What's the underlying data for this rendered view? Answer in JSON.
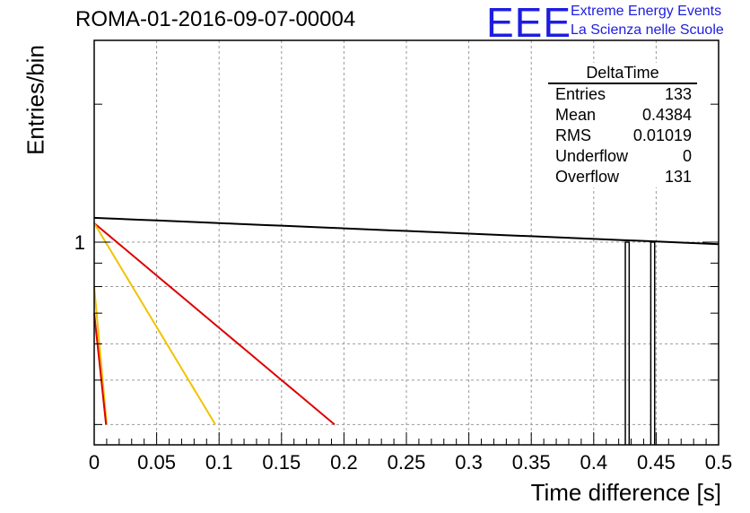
{
  "plot_title": "ROMA-01-2016-09-07-00004",
  "logo": {
    "mark": "EEE",
    "line1": "Extreme Energy Events",
    "line2": "La Scienza nelle Scuole",
    "color": "#1d1de0"
  },
  "stats_box": {
    "title": "DeltaTime",
    "rows": [
      {
        "label": "Entries",
        "value": "133"
      },
      {
        "label": "Mean",
        "value": "0.4384"
      },
      {
        "label": "RMS",
        "value": "0.01019"
      },
      {
        "label": "Underflow",
        "value": "0"
      },
      {
        "label": "Overflow",
        "value": "131"
      }
    ]
  },
  "chart_data": {
    "type": "line",
    "title": "ROMA-01-2016-09-07-00004",
    "xlabel": "Time difference [s]",
    "ylabel": "Entries/bin",
    "xlim": [
      0,
      0.5
    ],
    "ylog": true,
    "grid": true,
    "x_ticks": [
      "0",
      "0.05",
      "0.1",
      "0.15",
      "0.2",
      "0.25",
      "0.3",
      "0.35",
      "0.4",
      "0.45",
      "0.5"
    ],
    "y_ticks": [
      "1"
    ],
    "histogram": {
      "color": "#000000",
      "bins": [
        {
          "x0": 0.4253,
          "x1": 0.4284,
          "count": 1
        },
        {
          "x0": 0.4457,
          "x1": 0.4488,
          "count": 1
        }
      ]
    },
    "fits": [
      {
        "color": "#000000",
        "x": [
          0,
          0.5
        ],
        "y": [
          1.13,
          0.99
        ]
      },
      {
        "color": "#dd0000",
        "x": [
          0,
          0.1925
        ],
        "y": [
          1.1,
          0.4
        ]
      },
      {
        "color": "#f2c200",
        "x": [
          0,
          0.097
        ],
        "y": [
          1.1,
          0.4
        ]
      },
      {
        "color": "#f2c200",
        "x": [
          0,
          0.01
        ],
        "y": [
          0.8,
          0.4
        ]
      },
      {
        "color": "#dd0000",
        "x": [
          0,
          0.0095
        ],
        "y": [
          0.7,
          0.4
        ]
      }
    ],
    "colors": {
      "axis": "#000000",
      "grid": "#9a9a9a"
    }
  }
}
